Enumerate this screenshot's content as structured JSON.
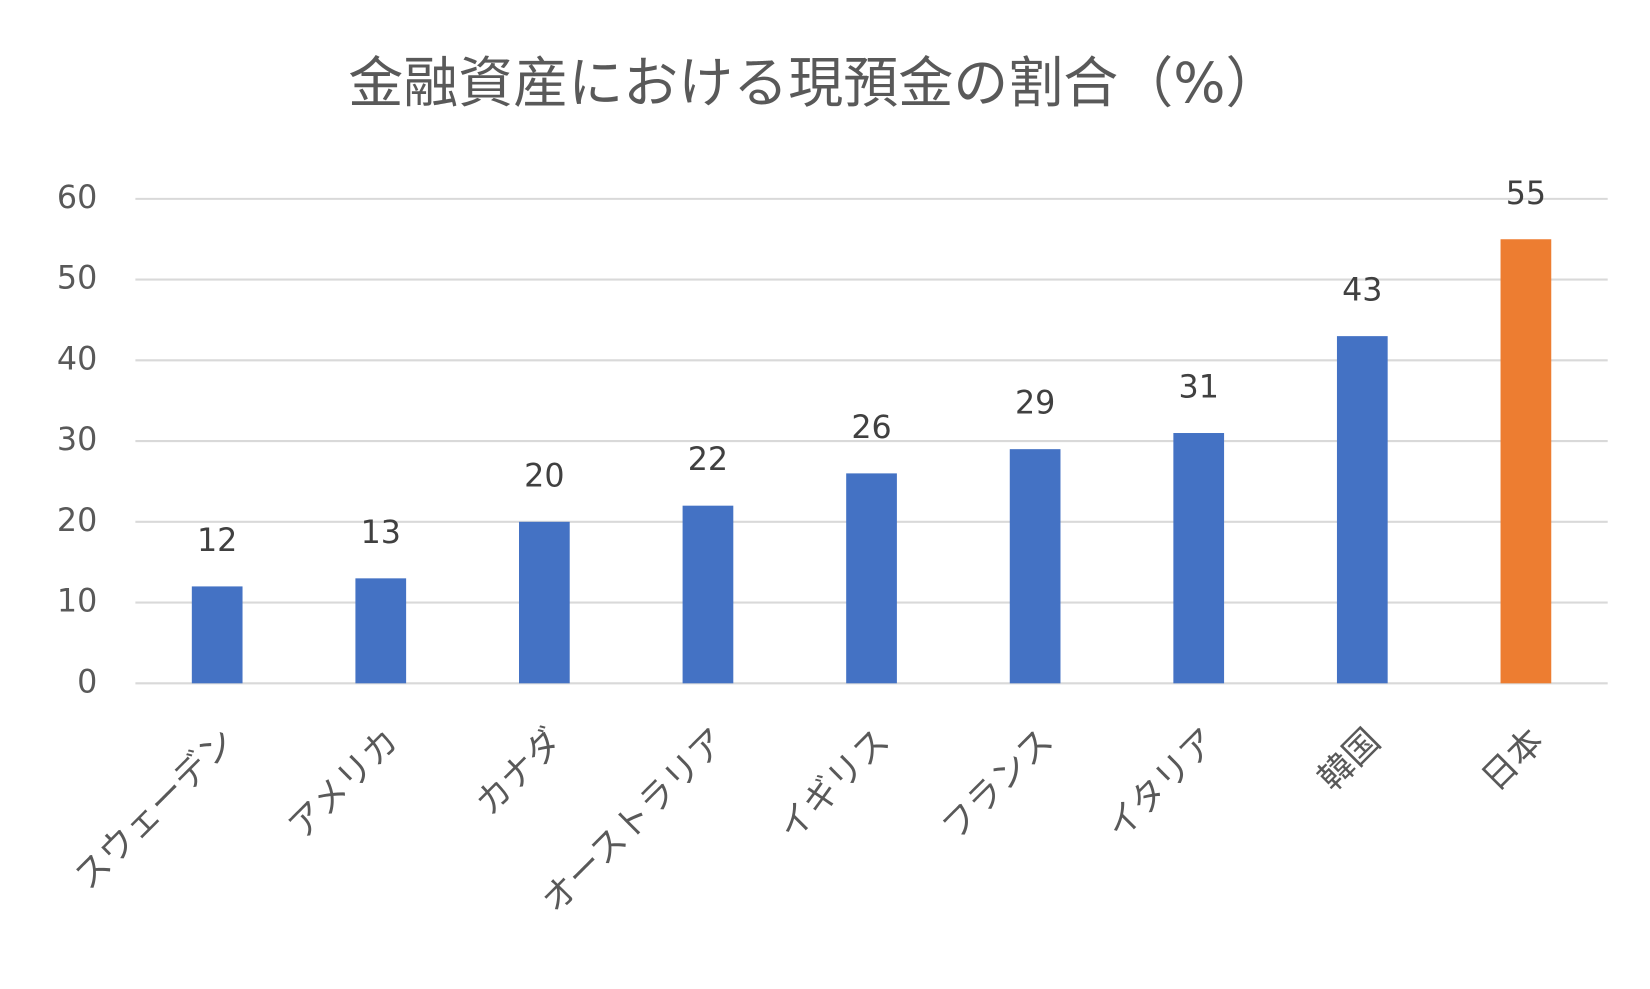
{
  "chart_data": {
    "type": "bar",
    "title": "金融資産における現預金の割合（%）",
    "categories": [
      "スウェーデン",
      "アメリカ",
      "カナダ",
      "オーストラリア",
      "イギリス",
      "フランス",
      "イタリア",
      "韓国",
      "日本"
    ],
    "values": [
      12,
      13,
      20,
      22,
      26,
      29,
      31,
      43,
      55
    ],
    "colors": [
      "#4472c4",
      "#4472c4",
      "#4472c4",
      "#4472c4",
      "#4472c4",
      "#4472c4",
      "#4472c4",
      "#4472c4",
      "#ed7d31"
    ],
    "ylim": [
      0,
      60
    ],
    "yticks": [
      0,
      10,
      20,
      30,
      40,
      50,
      60
    ],
    "grid": true
  }
}
